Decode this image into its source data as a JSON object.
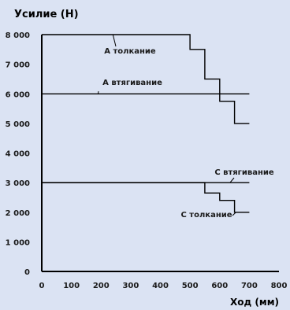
{
  "chart_data": {
    "type": "line",
    "ylabel": "Усилие (Н)",
    "xlabel": "Ход (мм)",
    "xlim": [
      0,
      800
    ],
    "ylim": [
      0,
      8000
    ],
    "xticks": [
      0,
      100,
      200,
      300,
      400,
      500,
      600,
      700,
      800
    ],
    "yticks": [
      0,
      1000,
      2000,
      3000,
      4000,
      5000,
      6000,
      7000,
      8000
    ],
    "xtick_labels": [
      "0",
      "100",
      "200",
      "300",
      "400",
      "500",
      "600",
      "700",
      "800"
    ],
    "ytick_labels": [
      "0",
      "1 000",
      "2 000",
      "3 000",
      "4 000",
      "5 000",
      "6 000",
      "7 000",
      "8 000"
    ],
    "grid": false,
    "series": [
      {
        "name": "A толкание",
        "x": [
          0,
          500,
          500,
          550,
          550,
          600,
          600,
          650,
          650,
          700
        ],
        "y": [
          8000,
          8000,
          7500,
          7500,
          6500,
          6500,
          5750,
          5750,
          5000,
          5000
        ]
      },
      {
        "name": "A втягивание",
        "x": [
          0,
          700
        ],
        "y": [
          6000,
          6000
        ]
      },
      {
        "name": "C втягивание",
        "x": [
          0,
          700
        ],
        "y": [
          3000,
          3000
        ]
      },
      {
        "name": "C толкание",
        "x": [
          0,
          550,
          550,
          600,
          600,
          650,
          650,
          700
        ],
        "y": [
          3000,
          3000,
          2650,
          2650,
          2400,
          2400,
          2000,
          2000
        ]
      }
    ],
    "annotations": [
      {
        "text": "A толкание",
        "target_x": 240,
        "target_y": 8000
      },
      {
        "text": "A втягивание",
        "target_x": 190,
        "target_y": 6000
      },
      {
        "text": "C втягивание",
        "target_x": 635,
        "target_y": 3000
      },
      {
        "text": "C толкание",
        "target_x": 655,
        "target_y": 2000
      }
    ]
  }
}
